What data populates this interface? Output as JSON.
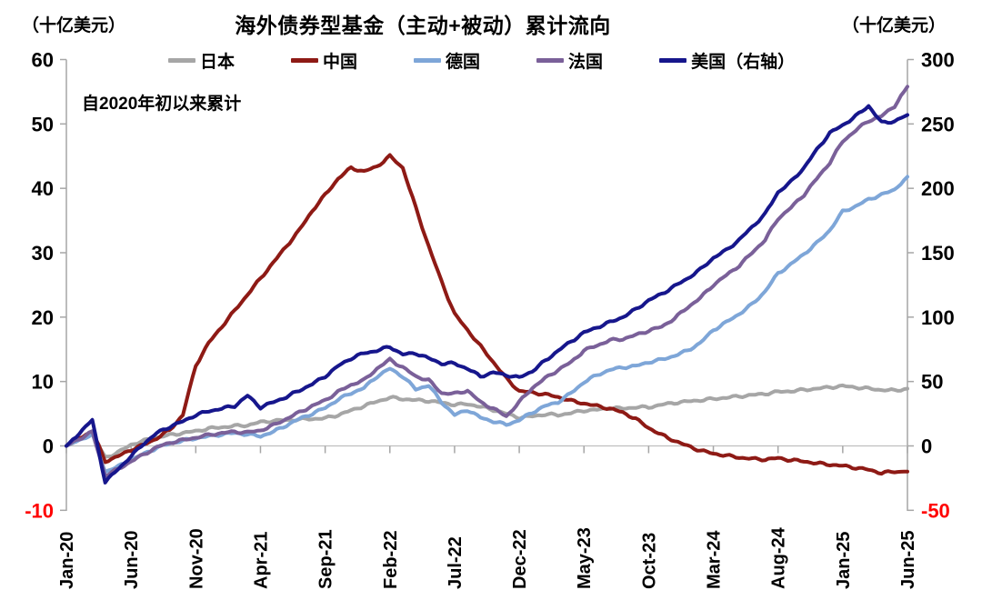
{
  "header": {
    "title": "海外债券型基金（主动+被动）累计流向",
    "left_unit": "（十亿美元）",
    "right_unit": "（十亿美元）",
    "annotation": "自2020年初以来累计"
  },
  "chart_data": {
    "type": "line",
    "title": "海外债券型基金（主动+被动）累计流向",
    "subtitle_note": "自2020年初以来累计",
    "x_tick_labels": [
      "Jan-20",
      "Jun-20",
      "Nov-20",
      "Apr-21",
      "Sep-21",
      "Feb-22",
      "Jul-22",
      "Dec-22",
      "May-23",
      "Oct-23",
      "Mar-24",
      "Aug-24",
      "Jan-25",
      "Jun-25"
    ],
    "x_interval_months": 5,
    "left_axis": {
      "label": "（十亿美元）",
      "min": -10,
      "max": 60,
      "ticks": [
        60,
        50,
        40,
        30,
        20,
        10,
        0,
        -10
      ]
    },
    "right_axis": {
      "label": "（十亿美元）",
      "min": -50,
      "max": 300,
      "ticks": [
        300,
        250,
        200,
        150,
        100,
        50,
        0,
        -50
      ]
    },
    "axis_color": "#A6A6A6",
    "gridline_color": "#BFBFBF",
    "negative_label_color": "#FF0000",
    "legend_position": "top",
    "series": [
      {
        "name": "日本",
        "axis": "left",
        "color": "#A6A6A6",
        "values": [
          0,
          1.0,
          1.8,
          -1.8,
          -1.0,
          0.2,
          0.8,
          1.3,
          1.7,
          2.0,
          2.3,
          2.7,
          2.9,
          3.1,
          3.2,
          3.7,
          3.9,
          4.0,
          4.1,
          4.2,
          4.3,
          4.8,
          5.5,
          6.2,
          6.9,
          7.5,
          7.3,
          7.1,
          7.0,
          6.7,
          6.4,
          6.5,
          6.1,
          5.6,
          5.0,
          4.4,
          4.6,
          4.9,
          4.8,
          5.1,
          5.5,
          5.6,
          5.9,
          5.8,
          6.0,
          6.0,
          6.4,
          6.7,
          6.9,
          7.1,
          7.3,
          7.5,
          7.7,
          7.9,
          8.1,
          8.4,
          8.5,
          8.7,
          8.9,
          9.1,
          9.3,
          9.1,
          8.9,
          8.7,
          8.6,
          8.9
        ]
      },
      {
        "name": "中国",
        "axis": "left",
        "color": "#8E1A15",
        "values": [
          0,
          1.2,
          2.3,
          -2.4,
          -1.6,
          -0.6,
          0.2,
          1.2,
          2.5,
          4.8,
          12.5,
          16.0,
          18.5,
          21.0,
          23.5,
          26.0,
          28.5,
          31.0,
          33.5,
          36.5,
          39.0,
          41.5,
          43.2,
          42.6,
          43.4,
          45.0,
          43.2,
          37.0,
          31.0,
          25.5,
          20.5,
          18.0,
          15.5,
          13.0,
          10.5,
          8.5,
          8.3,
          8.0,
          7.6,
          7.0,
          6.6,
          6.2,
          5.8,
          5.2,
          4.2,
          2.8,
          1.7,
          0.8,
          0.0,
          -0.7,
          -1.2,
          -1.5,
          -1.8,
          -2.0,
          -2.1,
          -1.9,
          -2.2,
          -2.4,
          -2.7,
          -2.9,
          -3.1,
          -3.4,
          -3.7,
          -4.2,
          -4.0,
          -4.0
        ]
      },
      {
        "name": "德国",
        "axis": "left",
        "color": "#7EA6D8",
        "values": [
          0,
          0.9,
          1.8,
          -4.0,
          -3.2,
          -2.2,
          -1.2,
          -0.3,
          0.4,
          0.8,
          1.2,
          1.5,
          1.8,
          2.0,
          1.8,
          1.5,
          2.2,
          3.2,
          4.2,
          5.0,
          5.9,
          7.2,
          8.2,
          9.0,
          10.8,
          12.0,
          10.8,
          8.8,
          9.4,
          6.8,
          4.8,
          5.6,
          4.4,
          3.8,
          3.3,
          4.0,
          5.2,
          6.2,
          6.8,
          8.2,
          9.9,
          11.0,
          11.8,
          12.2,
          12.4,
          13.0,
          13.4,
          14.0,
          14.8,
          16.0,
          18.0,
          19.2,
          20.5,
          22.0,
          24.0,
          26.8,
          28.2,
          29.8,
          31.5,
          33.5,
          36.4,
          37.2,
          38.3,
          39.0,
          39.8,
          41.8
        ]
      },
      {
        "name": "法国",
        "axis": "left",
        "color": "#7A6099",
        "values": [
          0,
          1.1,
          2.2,
          -4.6,
          -3.6,
          -2.4,
          -1.3,
          -0.2,
          0.5,
          0.9,
          1.3,
          1.7,
          2.0,
          2.2,
          2.1,
          2.4,
          3.2,
          4.2,
          5.2,
          6.2,
          7.1,
          8.4,
          9.5,
          10.2,
          12.0,
          13.4,
          12.2,
          10.8,
          10.2,
          8.2,
          8.1,
          8.6,
          6.8,
          5.8,
          4.6,
          6.8,
          9.0,
          10.5,
          11.8,
          13.0,
          14.8,
          15.6,
          16.4,
          16.6,
          17.2,
          17.9,
          18.5,
          19.8,
          21.5,
          23.0,
          25.0,
          26.5,
          28.0,
          30.0,
          32.0,
          35.3,
          37.0,
          39.0,
          41.5,
          44.0,
          47.3,
          49.0,
          50.5,
          51.2,
          52.8,
          55.8
        ]
      },
      {
        "name": "美国（右轴）",
        "axis": "right",
        "color": "#16168C",
        "values": [
          0,
          10,
          20,
          -28,
          -18,
          -8,
          2,
          10,
          15,
          19,
          24,
          27,
          29,
          31,
          39,
          30,
          34,
          38,
          43,
          48,
          54,
          62,
          68,
          72,
          74,
          77,
          71,
          72,
          68,
          64,
          64,
          60,
          54,
          57,
          55,
          53,
          58,
          66,
          74,
          81,
          88,
          92,
          96,
          100,
          106,
          113,
          118,
          124,
          130,
          137,
          146,
          152,
          160,
          170,
          180,
          197,
          205,
          216,
          230,
          243,
          249,
          256,
          264,
          251,
          252,
          257
        ]
      }
    ]
  }
}
